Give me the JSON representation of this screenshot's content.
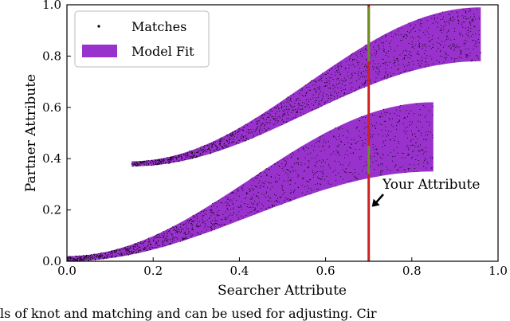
{
  "chart_data": {
    "type": "scatter",
    "xlabel": "Searcher Attribute",
    "ylabel": "Partner Attribute",
    "xlim": [
      0.0,
      1.0
    ],
    "ylim": [
      0.0,
      1.0
    ],
    "xticks": [
      "0.0",
      "0.2",
      "0.4",
      "0.6",
      "0.8",
      "1.0"
    ],
    "yticks": [
      "0.0",
      "0.2",
      "0.4",
      "0.6",
      "0.8",
      "1.0"
    ],
    "grid": false,
    "legend_placement": "top-left",
    "series": [
      {
        "name": "Matches",
        "kind": "points",
        "color": "#000000",
        "bands": [
          {
            "x_start": 0.15,
            "x_end": 0.96,
            "upper_start": 0.39,
            "upper_end": 0.99,
            "lower_start": 0.37,
            "lower_end": 0.78
          },
          {
            "x_start": 0.0,
            "x_end": 0.85,
            "upper_start": 0.02,
            "upper_end": 0.62,
            "lower_start": 0.0,
            "lower_end": 0.35
          }
        ]
      },
      {
        "name": "Model Fit",
        "kind": "filled-region",
        "color": "#9932CC",
        "bands": [
          {
            "x_start": 0.15,
            "x_end": 0.96,
            "upper_start": 0.39,
            "upper_end": 0.99,
            "lower_start": 0.37,
            "lower_end": 0.78
          },
          {
            "x_start": 0.0,
            "x_end": 0.85,
            "upper_start": 0.02,
            "upper_end": 0.62,
            "lower_start": 0.0,
            "lower_end": 0.35
          }
        ]
      }
    ],
    "vertical_line": {
      "x": 0.7,
      "color": "#CC2222"
    },
    "highlight_segments": [
      {
        "x": 0.7,
        "y_from": 0.78,
        "y_to": 0.99,
        "color": "#6B8E23"
      },
      {
        "x": 0.7,
        "y_from": 0.34,
        "y_to": 0.45,
        "color": "#6B8E23"
      }
    ],
    "annotation": {
      "text": "Your Attribute",
      "arrow_to": {
        "x": 0.7,
        "y": 0.2
      }
    }
  },
  "caption_fragment": "ls of knot and matching and can be used for adjusting. Cir"
}
